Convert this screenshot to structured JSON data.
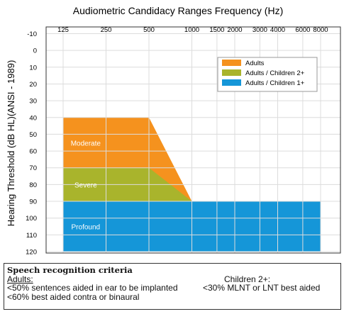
{
  "chart_data": {
    "type": "area",
    "title": "Audiometric  Candidacy Ranges Frequency (Hz)",
    "xlabel": "",
    "ylabel": "Hearing Threshold (dB HL)(ANSI - 1989)",
    "x_scale": "log",
    "x_ticks": [
      "125",
      "250",
      "500",
      "1000",
      "1500",
      "2000",
      "3000",
      "4000",
      "6000",
      "8000"
    ],
    "x_tick_values": [
      125,
      250,
      500,
      1000,
      1500,
      2000,
      3000,
      4000,
      6000,
      8000
    ],
    "y_ticks": [
      "-10",
      "0",
      "10",
      "20",
      "30",
      "40",
      "50",
      "60",
      "70",
      "80",
      "90",
      "100",
      "110",
      "120"
    ],
    "y_tick_values": [
      -10,
      0,
      10,
      20,
      30,
      40,
      50,
      60,
      70,
      80,
      90,
      100,
      110,
      120
    ],
    "y_inverted": true,
    "ylim": [
      -10,
      120
    ],
    "grid": true,
    "legend_position": "top-right",
    "series": [
      {
        "name": "Adults",
        "color": "#f5921e",
        "polygon": [
          [
            125,
            40
          ],
          [
            500,
            40
          ],
          [
            1000,
            90
          ],
          [
            125,
            90
          ]
        ]
      },
      {
        "name": "Adults / Children 2+",
        "color": "#a9b42c",
        "polygon": [
          [
            125,
            70
          ],
          [
            500,
            70
          ],
          [
            1000,
            90
          ],
          [
            125,
            90
          ]
        ]
      },
      {
        "name": "Adults / Children 1+",
        "color": "#1596d8",
        "polygon": [
          [
            125,
            90
          ],
          [
            8000,
            90
          ],
          [
            8000,
            120
          ],
          [
            125,
            120
          ]
        ]
      }
    ],
    "region_labels": [
      {
        "text": "Moderate",
        "x": 180,
        "y": 55
      },
      {
        "text": "Severe",
        "x": 180,
        "y": 80
      },
      {
        "text": "Profound",
        "x": 180,
        "y": 105
      }
    ]
  },
  "criteria": {
    "heading": "Speech recognition criteria",
    "adults_heading": "Adults:",
    "adults_line1": "<50% sentences aided in ear to be implanted",
    "adults_line2": "<60% best aided contra or binaural",
    "children_heading": "Children 2+:",
    "children_line1": "<30% MLNT or LNT best aided"
  }
}
